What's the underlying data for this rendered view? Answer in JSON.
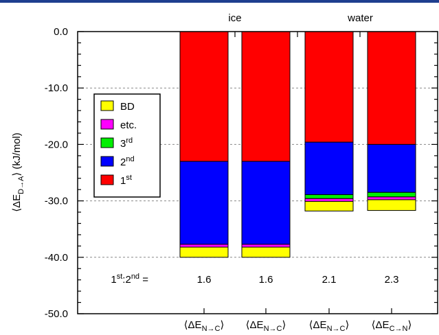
{
  "chart_data": {
    "type": "bar",
    "stacked": true,
    "categories": [
      "⟨ΔE_N→C⟩",
      "⟨ΔE_N→C⟩",
      "⟨ΔE_N→C⟩",
      "⟨ΔE_C→N⟩"
    ],
    "category_labels": [
      {
        "main": "⟨ΔE",
        "sub": "N→C",
        "close": "⟩"
      },
      {
        "main": "⟨ΔE",
        "sub": "N→C",
        "close": "⟩"
      },
      {
        "main": "⟨ΔE",
        "sub": "N→C",
        "close": "⟩"
      },
      {
        "main": "⟨ΔE",
        "sub": "C→N",
        "close": "⟩"
      }
    ],
    "groups": [
      {
        "label": "ice",
        "categories": [
          0,
          1
        ]
      },
      {
        "label": "water",
        "categories": [
          2,
          3
        ]
      }
    ],
    "series": [
      {
        "name": "1st",
        "name_main": "1",
        "name_sup": "st",
        "color": "#ff0000",
        "values": [
          -23.0,
          -23.0,
          -19.6,
          -20.0
        ]
      },
      {
        "name": "2nd",
        "name_main": "2",
        "name_sup": "nd",
        "color": "#0000ff",
        "values": [
          -14.7,
          -14.7,
          -9.3,
          -8.5
        ]
      },
      {
        "name": "3rd",
        "name_main": "3",
        "name_sup": "rd",
        "color": "#00ee00",
        "values": [
          0.0,
          0.0,
          -0.7,
          -0.8
        ]
      },
      {
        "name": "etc.",
        "name_main": "etc.",
        "name_sup": "",
        "color": "#ff00ff",
        "values": [
          -0.5,
          -0.5,
          -0.5,
          -0.5
        ]
      },
      {
        "name": "BD",
        "name_main": "BD",
        "name_sup": "",
        "color": "#ffff00",
        "values": [
          -1.8,
          -1.8,
          -1.7,
          -1.9
        ]
      }
    ],
    "legend_order": [
      4,
      3,
      2,
      1,
      0
    ],
    "ylabel": {
      "main": "⟨ΔE",
      "sub": "D→A",
      "rest": "⟩ (kJ/mol)"
    },
    "ylim": [
      -50,
      0
    ],
    "yticks": [
      0,
      -10,
      -20,
      -30,
      -40,
      -50
    ],
    "ytick_labels": [
      "0.0",
      "-10.0",
      "-20.0",
      "-30.0",
      "-40.0",
      "-50.0"
    ],
    "grid": "horizontal dashed at major ticks",
    "legend_position": "left",
    "ratio_row": {
      "label_parts": [
        "1",
        "st",
        ":2",
        "nd",
        " ="
      ],
      "values": [
        "1.6",
        "1.6",
        "2.1",
        "2.3"
      ]
    }
  }
}
